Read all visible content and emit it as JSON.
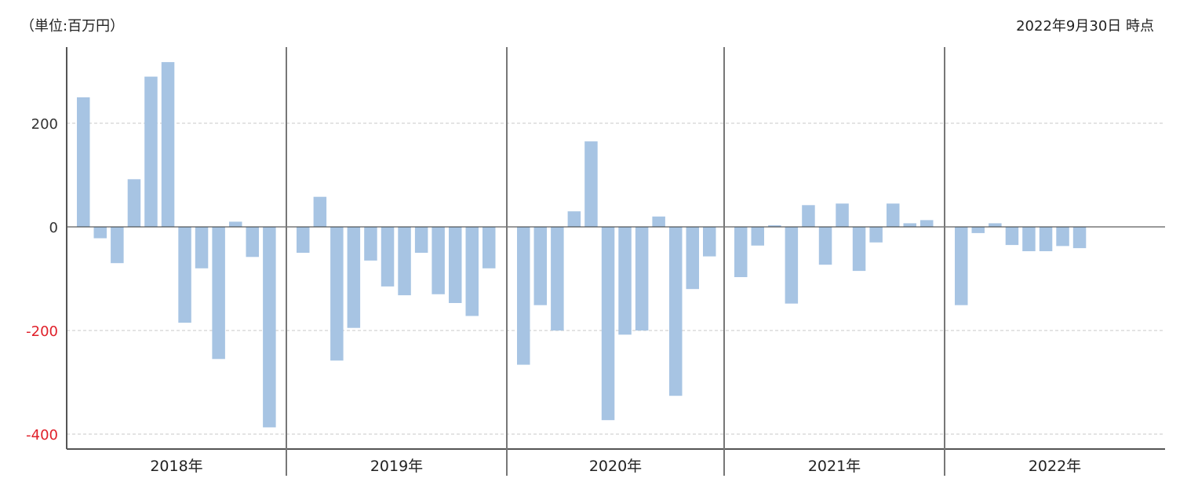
{
  "header": {
    "unit_label": "（単位:百万円）",
    "as_of_label": "2022年9月30日 時点"
  },
  "colors": {
    "bar": "#a7c4e3",
    "negative_tick": "#e0202a",
    "positive_tick": "#333333",
    "grid": "#c8c8c8",
    "axis": "#555555"
  },
  "chart_data": {
    "type": "bar",
    "title": "",
    "xlabel": "",
    "ylabel": "",
    "ylim": [
      -430,
      350
    ],
    "yticks": [
      200,
      0,
      -200,
      -400
    ],
    "grid": true,
    "groups": [
      {
        "label": "2018年",
        "values": [
          250,
          -22,
          -70,
          92,
          290,
          318,
          -185,
          -80,
          -255,
          10,
          -58,
          -387
        ]
      },
      {
        "label": "2019年",
        "values": [
          -50,
          58,
          -258,
          -195,
          -65,
          -115,
          -132,
          -50,
          -130,
          -147,
          -172,
          -80
        ]
      },
      {
        "label": "2020年",
        "values": [
          -266,
          -151,
          -200,
          30,
          165,
          -373,
          -208,
          -200,
          20,
          -326,
          -120,
          -57
        ]
      },
      {
        "label": "2021年",
        "values": [
          -97,
          -36,
          3,
          -148,
          42,
          -73,
          45,
          -85,
          -30,
          45,
          7,
          13
        ]
      },
      {
        "label": "2022年",
        "values": [
          -151,
          -12,
          7,
          -35,
          -47,
          -47,
          -37,
          -41
        ]
      }
    ]
  }
}
